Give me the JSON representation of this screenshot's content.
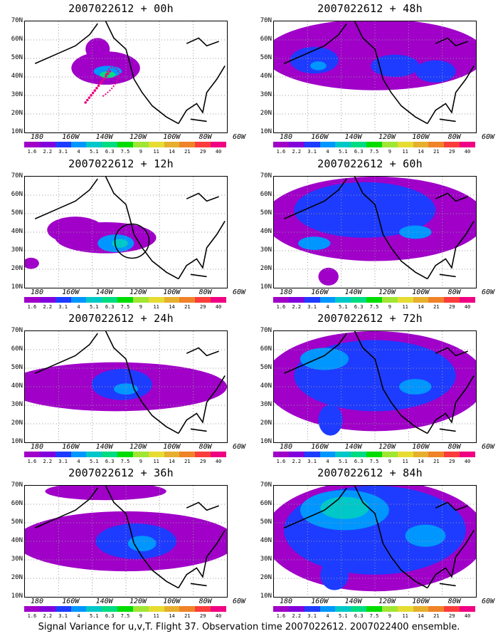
{
  "panels": [
    {
      "title": "2007022612 + 00h",
      "lead_hours": 0
    },
    {
      "title": "2007022612 + 12h",
      "lead_hours": 12
    },
    {
      "title": "2007022612 + 24h",
      "lead_hours": 24
    },
    {
      "title": "2007022612 + 36h",
      "lead_hours": 36
    },
    {
      "title": "2007022612 + 48h",
      "lead_hours": 48
    },
    {
      "title": "2007022612 + 60h",
      "lead_hours": 60
    },
    {
      "title": "2007022612 + 72h",
      "lead_hours": 72
    },
    {
      "title": "2007022612 + 84h",
      "lead_hours": 84
    }
  ],
  "lat_labels": [
    "70N",
    "60N",
    "50N",
    "40N",
    "30N",
    "20N",
    "10N"
  ],
  "lon_labels": [
    "180",
    "160W",
    "140W",
    "120W",
    "100W",
    "80W",
    "60W"
  ],
  "colorbar": {
    "labels": [
      "1.6",
      "2.2",
      "3.1",
      "4",
      "5.1",
      "6.3",
      "7.5",
      "9",
      "11",
      "14",
      "21",
      "29",
      "40"
    ],
    "colors": [
      "#a000c8",
      "#8200dc",
      "#1e3cff",
      "#0096ff",
      "#00c8c8",
      "#00dc82",
      "#00dc00",
      "#a0e632",
      "#e6dc32",
      "#e6af2d",
      "#f08228",
      "#fa3c3c",
      "#f00082"
    ]
  },
  "caption": "Signal Variance for u,v,T. Flight 37. Observation time 2007022612. 2007022400 ensemble."
}
